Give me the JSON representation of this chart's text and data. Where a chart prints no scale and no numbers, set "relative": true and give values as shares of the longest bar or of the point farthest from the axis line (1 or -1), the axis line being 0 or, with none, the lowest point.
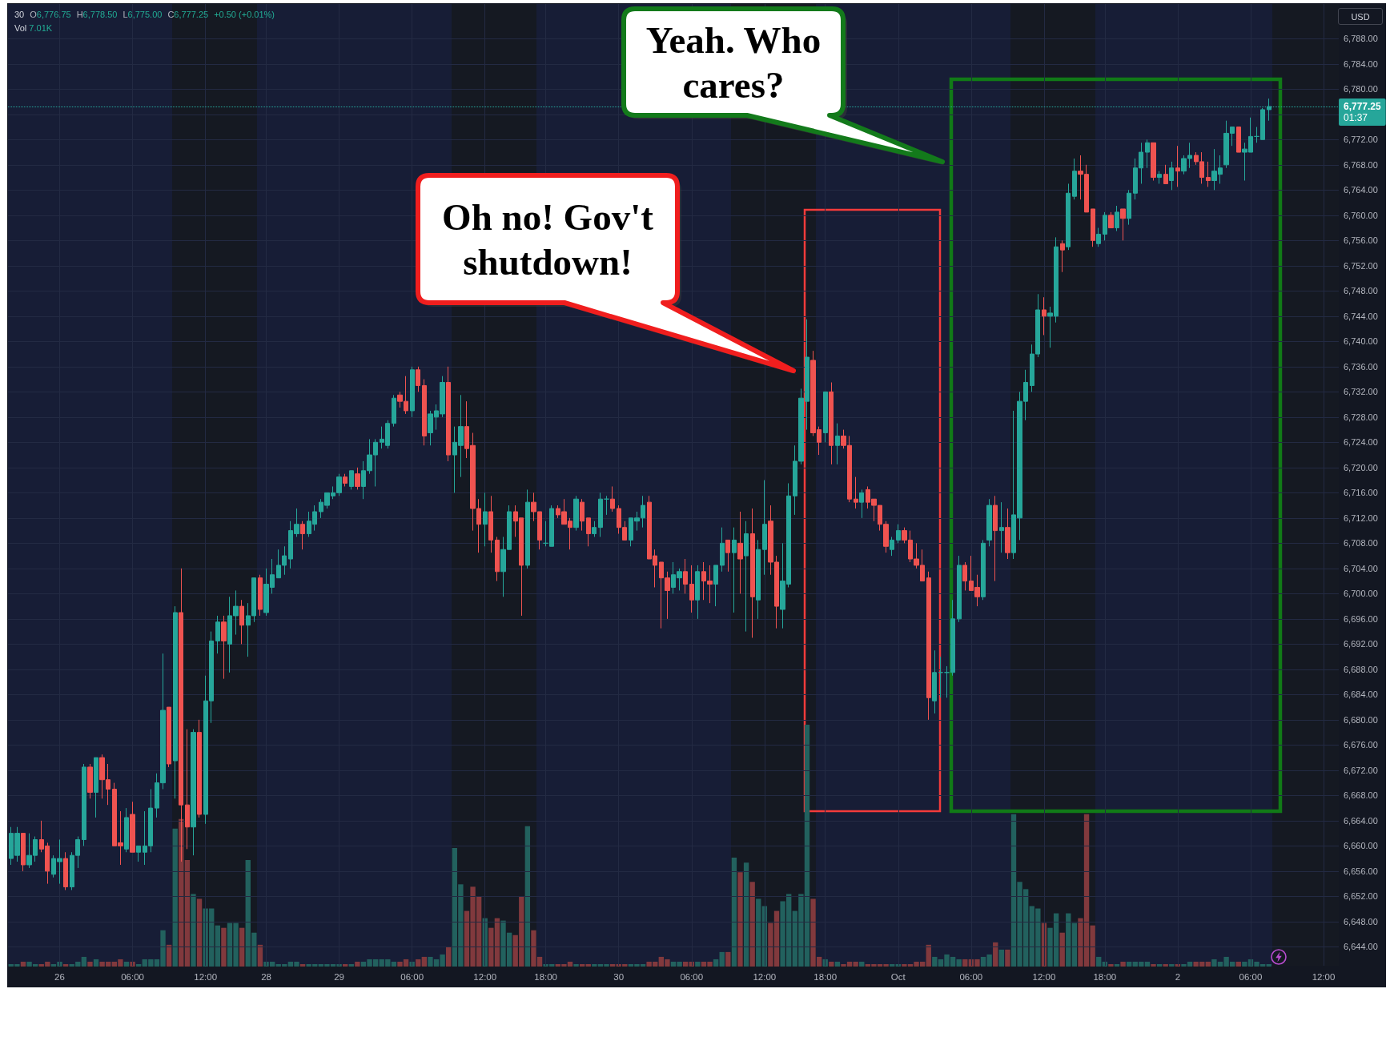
{
  "chart_data": [
    {
      "type": "candlestick",
      "categories": [
        null,
        null,
        null,
        null,
        null,
        null,
        null,
        null,
        "26",
        null,
        null,
        null,
        null,
        null,
        null,
        null,
        null,
        null,
        null,
        null,
        "06:00",
        null,
        null,
        null,
        null,
        null,
        null,
        null,
        null,
        null,
        null,
        null,
        "12:00",
        null,
        null,
        null,
        null,
        null,
        null,
        null,
        null,
        null,
        "28",
        null,
        null,
        null,
        null,
        null,
        null,
        null,
        null,
        null,
        null,
        null,
        "29",
        null,
        null,
        null,
        null,
        null,
        null,
        null,
        null,
        null,
        null,
        null,
        "06:00",
        null,
        null,
        null,
        null,
        null,
        null,
        null,
        null,
        null,
        null,
        null,
        "12:00",
        null,
        null,
        null,
        null,
        null,
        null,
        null,
        null,
        null,
        "18:00",
        null,
        null,
        null,
        null,
        null,
        null,
        null,
        null,
        null,
        null,
        null,
        "30",
        null,
        null,
        null,
        null,
        null,
        null,
        null,
        null,
        null,
        null,
        null,
        "06:00",
        null,
        null,
        null,
        null,
        null,
        null,
        null,
        null,
        null,
        null,
        null,
        "12:00",
        null,
        null,
        null,
        null,
        null,
        null,
        null,
        null,
        null,
        "18:00",
        null,
        null,
        null,
        null,
        null,
        null,
        null,
        null,
        null,
        null,
        null,
        "Oct",
        null,
        null,
        null,
        null,
        null,
        null,
        null,
        null,
        null,
        null,
        null,
        "06:00",
        null,
        null,
        null,
        null,
        null,
        null,
        null,
        null,
        null,
        null,
        null,
        "12:00",
        null,
        null,
        null,
        null,
        null,
        null,
        null,
        null,
        null,
        "18:00",
        null,
        null,
        null,
        null,
        null,
        null,
        null,
        null,
        null,
        null,
        null,
        "2",
        null,
        null,
        null,
        null,
        null,
        null,
        null,
        null,
        null,
        null,
        null,
        "06:00",
        null,
        null,
        null,
        null,
        null,
        null,
        null,
        null,
        null,
        null,
        null,
        "12:00",
        null,
        null
      ],
      "ohlc": [
        [
          6658,
          6663,
          6657,
          6662
        ],
        [
          6658.5,
          6663,
          6657.5,
          6662
        ],
        [
          6662,
          6662,
          6656,
          6657
        ],
        [
          6657,
          6662,
          6656.5,
          6658.5
        ],
        [
          6658.5,
          6661.5,
          6657.5,
          6661
        ],
        [
          6661,
          6664,
          6659,
          6659.5
        ],
        [
          6660,
          6660.5,
          6654,
          6656
        ],
        [
          6655.5,
          6658.5,
          6655,
          6658
        ],
        [
          6657.5,
          6661,
          6654,
          6658
        ],
        [
          6658,
          6659,
          6653,
          6653.5
        ],
        [
          6653.5,
          6659,
          6653,
          6658.5
        ],
        [
          6658.5,
          6661.5,
          6656.5,
          6661
        ],
        [
          6661,
          6673,
          6660,
          6672.5
        ],
        [
          6672.5,
          6673,
          6667.5,
          6668.5
        ],
        [
          6668.5,
          6674,
          6664.5,
          6674
        ],
        [
          6674,
          6674.5,
          6667.5,
          6670.5
        ],
        [
          6670.5,
          6673,
          6666.5,
          6669
        ],
        [
          6669,
          6670,
          6660,
          6660
        ],
        [
          6660.5,
          6665.5,
          6657,
          6660
        ],
        [
          6659.5,
          6666,
          6659,
          6664.5
        ],
        [
          6665,
          6667,
          6659,
          6659
        ],
        [
          6659,
          6660,
          6657.5,
          6660
        ],
        [
          6659,
          6665.5,
          6657,
          6660
        ],
        [
          6660,
          6669,
          6659,
          6666
        ],
        [
          6666,
          6671.5,
          6664.5,
          6670
        ],
        [
          6670,
          6690.5,
          6669,
          6681.5
        ],
        [
          6682,
          6682,
          6672.5,
          6673
        ],
        [
          6673.5,
          6698,
          6667.5,
          6697
        ],
        [
          6697,
          6704,
          6657.5,
          6666.5
        ],
        [
          6666.5,
          6678.5,
          6659.5,
          6663
        ],
        [
          6663,
          6678.5,
          6658.5,
          6678
        ],
        [
          6678,
          6680,
          6664.5,
          6665
        ],
        [
          6665,
          6687,
          6663.5,
          6683
        ],
        [
          6683,
          6694,
          6679.5,
          6692.5
        ],
        [
          6692.5,
          6696.5,
          6690.5,
          6695.5
        ],
        [
          6695.5,
          6696.5,
          6686.5,
          6692.5
        ],
        [
          6692,
          6699.5,
          6687.5,
          6696.5
        ],
        [
          6696.5,
          6700.5,
          6693.5,
          6698
        ],
        [
          6698,
          6699,
          6692,
          6695
        ],
        [
          6695,
          6698.5,
          6690,
          6696.5
        ],
        [
          6696.5,
          6702.5,
          6695.5,
          6702.5
        ],
        [
          6702.5,
          6703,
          6696.5,
          6697.5
        ],
        [
          6697,
          6704,
          6696.5,
          6701.5
        ],
        [
          6701,
          6705.5,
          6700,
          6703
        ],
        [
          6702.5,
          6707,
          6702.5,
          6704.5
        ],
        [
          6704.5,
          6707.5,
          6703,
          6706
        ],
        [
          6705.5,
          6711.5,
          6704,
          6710
        ],
        [
          6709.5,
          6713.5,
          6709,
          6711
        ],
        [
          6711,
          6711.5,
          6707,
          6709.5
        ],
        [
          6709.5,
          6713,
          6709,
          6711.5
        ],
        [
          6711,
          6714,
          6710,
          6713
        ],
        [
          6713,
          6715,
          6712,
          6714.5
        ],
        [
          6714,
          6716,
          6713.5,
          6716
        ],
        [
          6715.5,
          6717,
          6715,
          6716
        ],
        [
          6716,
          6719,
          6715.5,
          6718.5
        ],
        [
          6718.5,
          6719,
          6717,
          6717.5
        ],
        [
          6717,
          6719.5,
          6716.5,
          6719.5
        ],
        [
          6719,
          6720,
          6716.5,
          6717
        ],
        [
          6717,
          6721,
          6715,
          6719.5
        ],
        [
          6719.5,
          6724.5,
          6719,
          6722
        ],
        [
          6722,
          6724.5,
          6717,
          6724
        ],
        [
          6724,
          6726.5,
          6723,
          6724.5
        ],
        [
          6723.5,
          6727.5,
          6723,
          6727
        ],
        [
          6727,
          6731.5,
          6726.5,
          6731
        ],
        [
          6731.5,
          6732,
          6729.5,
          6730.5
        ],
        [
          6730.5,
          6734.5,
          6728.5,
          6729
        ],
        [
          6729,
          6736,
          6728,
          6735.5
        ],
        [
          6735.5,
          6736,
          6732,
          6733
        ],
        [
          6733,
          6734,
          6723.5,
          6725
        ],
        [
          6725.5,
          6729,
          6723.5,
          6728.5
        ],
        [
          6728,
          6730,
          6726,
          6729
        ],
        [
          6728.5,
          6734.5,
          6728,
          6733.5
        ],
        [
          6733.5,
          6736,
          6721,
          6722
        ],
        [
          6722,
          6726.5,
          6716,
          6724
        ],
        [
          6723.5,
          6731.5,
          6718.5,
          6726.5
        ],
        [
          6726.5,
          6730.5,
          6721.5,
          6723
        ],
        [
          6723.5,
          6725.5,
          6710,
          6713.5
        ],
        [
          6713.5,
          6715,
          6706.5,
          6711
        ],
        [
          6711,
          6716,
          6707.5,
          6713
        ],
        [
          6713,
          6715.5,
          6706.5,
          6708.5
        ],
        [
          6708.5,
          6709,
          6702,
          6703.5
        ],
        [
          6703.5,
          6709,
          6699.5,
          6707
        ],
        [
          6707,
          6714,
          6707,
          6713
        ],
        [
          6713,
          6714,
          6709,
          6711.5
        ],
        [
          6712,
          6712,
          6696.5,
          6704.5
        ],
        [
          6704.5,
          6716.5,
          6704,
          6714.5
        ],
        [
          6714.5,
          6716,
          6711.5,
          6713
        ],
        [
          6713,
          6713,
          6707,
          6708.5
        ],
        [
          6708,
          6711.5,
          6707.5,
          6708
        ],
        [
          6707.5,
          6714,
          6707.5,
          6713.5
        ],
        [
          6713.5,
          6714,
          6712,
          6712.5
        ],
        [
          6713,
          6715,
          6711,
          6711
        ],
        [
          6711.5,
          6712,
          6707,
          6710.5
        ],
        [
          6710.5,
          6715.5,
          6710,
          6715
        ],
        [
          6714.5,
          6715,
          6710,
          6711.5
        ],
        [
          6712,
          6712,
          6707.5,
          6709.5
        ],
        [
          6709.5,
          6711.5,
          6709,
          6710.5
        ],
        [
          6710.5,
          6716,
          6709,
          6715
        ],
        [
          6715,
          6715.5,
          6712.5,
          6715
        ],
        [
          6715,
          6717,
          6713,
          6713.5
        ],
        [
          6713.5,
          6714,
          6709.5,
          6710.5
        ],
        [
          6710.5,
          6711.5,
          6708.5,
          6708.5
        ],
        [
          6708.5,
          6712,
          6707.5,
          6712
        ],
        [
          6711.5,
          6713,
          6710,
          6712
        ],
        [
          6712,
          6715.5,
          6710.5,
          6714
        ],
        [
          6714.5,
          6715.5,
          6705.5,
          6705.5
        ],
        [
          6706,
          6707,
          6701,
          6704.5
        ],
        [
          6705,
          6705,
          6694.5,
          6702.5
        ],
        [
          6702.5,
          6703.5,
          6696,
          6700.5
        ],
        [
          6701,
          6705,
          6700,
          6703
        ],
        [
          6702.5,
          6704,
          6700.5,
          6703.5
        ],
        [
          6703.5,
          6705.5,
          6700,
          6701.5
        ],
        [
          6701.5,
          6704.5,
          6697,
          6699
        ],
        [
          6699,
          6704.5,
          6696,
          6703.5
        ],
        [
          6703.5,
          6705,
          6699,
          6702
        ],
        [
          6702,
          6704.5,
          6698.5,
          6701.5
        ],
        [
          6701.5,
          6704.5,
          6698,
          6704.5
        ],
        [
          6704.5,
          6710.5,
          6703.5,
          6708
        ],
        [
          6708.5,
          6708.5,
          6703.5,
          6706.5
        ],
        [
          6706.5,
          6710.5,
          6697,
          6708.5
        ],
        [
          6708,
          6713,
          6700,
          6705.5
        ],
        [
          6706,
          6711.5,
          6694,
          6709.5
        ],
        [
          6709.5,
          6713.5,
          6693,
          6699.5
        ],
        [
          6699,
          6708.5,
          6696,
          6707
        ],
        [
          6707,
          6718,
          6703,
          6711
        ],
        [
          6711.5,
          6714,
          6703,
          6705
        ],
        [
          6705,
          6706,
          6694.5,
          6698
        ],
        [
          6697.5,
          6708,
          6694.5,
          6702
        ],
        [
          6701.5,
          6717.5,
          6701,
          6715.5
        ],
        [
          6715.5,
          6723.5,
          6712.5,
          6721
        ],
        [
          6721,
          6732.5,
          6720.5,
          6731
        ],
        [
          6730.5,
          6743.5,
          6726,
          6737.5
        ],
        [
          6737,
          6738.5,
          6725,
          6725.5
        ],
        [
          6726,
          6726.5,
          6722,
          6724
        ],
        [
          6725.5,
          6732,
          6724,
          6732
        ],
        [
          6732,
          6733.5,
          6720.5,
          6723.5
        ],
        [
          6723.5,
          6727,
          6720.5,
          6725
        ],
        [
          6725,
          6726,
          6723,
          6723.5
        ],
        [
          6723.5,
          6725,
          6714.5,
          6715
        ],
        [
          6715,
          6718.5,
          6713.5,
          6714.5
        ],
        [
          6714.5,
          6716.5,
          6712,
          6716
        ],
        [
          6716.5,
          6717,
          6713.5,
          6714.5
        ],
        [
          6715,
          6715,
          6711.5,
          6714
        ],
        [
          6714,
          6714,
          6710,
          6711
        ],
        [
          6711,
          6711.5,
          6706.5,
          6707.5
        ],
        [
          6707,
          6709,
          6706,
          6708.5
        ],
        [
          6708.5,
          6711,
          6708,
          6710
        ],
        [
          6710,
          6710.5,
          6708,
          6708.5
        ],
        [
          6708.5,
          6710,
          6705,
          6705.5
        ],
        [
          6705.5,
          6708,
          6704,
          6704.5
        ],
        [
          6704.5,
          6707,
          6702,
          6702
        ],
        [
          6702.5,
          6703.5,
          6680,
          6683.5
        ],
        [
          6683,
          6691,
          6681,
          6687.5
        ],
        [
          6687.5,
          6690,
          6683.5,
          6687.5
        ],
        [
          6687.5,
          6688.5,
          6683.5,
          6687.5
        ],
        [
          6687.5,
          6699,
          6687,
          6696
        ],
        [
          6696,
          6706,
          6695.5,
          6704.5
        ],
        [
          6704.5,
          6705,
          6700.5,
          6702
        ],
        [
          6702,
          6706,
          6700.5,
          6700.5
        ],
        [
          6701,
          6703,
          6698,
          6699.5
        ],
        [
          6699.5,
          6708.5,
          6699,
          6708
        ],
        [
          6708.5,
          6715,
          6707.5,
          6714
        ],
        [
          6714,
          6715.5,
          6702,
          6710
        ],
        [
          6710,
          6714.5,
          6706.5,
          6710.5
        ],
        [
          6710.5,
          6713.5,
          6705.5,
          6706.5
        ],
        [
          6706.5,
          6729,
          6705.5,
          6712.5
        ],
        [
          6712,
          6732,
          6708.5,
          6730.5
        ],
        [
          6730.5,
          6735.5,
          6727.5,
          6733.5
        ],
        [
          6733,
          6739.5,
          6732,
          6738
        ],
        [
          6738,
          6747.5,
          6737.5,
          6745
        ],
        [
          6745,
          6747,
          6741,
          6744
        ],
        [
          6744,
          6745.5,
          6739,
          6744.5
        ],
        [
          6744,
          6756.5,
          6743,
          6755
        ],
        [
          6755.5,
          6756,
          6751,
          6754.5
        ],
        [
          6755,
          6765,
          6754.5,
          6763.5
        ],
        [
          6763,
          6769,
          6762.5,
          6767
        ],
        [
          6767,
          6769.5,
          6762.5,
          6766.5
        ],
        [
          6766.5,
          6768,
          6760.5,
          6760.5
        ],
        [
          6761,
          6761,
          6755,
          6756
        ],
        [
          6755.5,
          6758,
          6755,
          6757
        ],
        [
          6757,
          6760.5,
          6756,
          6760
        ],
        [
          6760,
          6760.5,
          6758,
          6758
        ],
        [
          6758,
          6761.5,
          6757.5,
          6760.5
        ],
        [
          6761,
          6761,
          6756,
          6759.5
        ],
        [
          6759.5,
          6764,
          6758.5,
          6763.5
        ],
        [
          6763.5,
          6769,
          6762.5,
          6767.5
        ],
        [
          6767.5,
          6771.5,
          6765,
          6770
        ],
        [
          6770,
          6772,
          6767.5,
          6771.5
        ],
        [
          6771.5,
          6771.5,
          6765.5,
          6766
        ],
        [
          6766,
          6767,
          6765,
          6766.5
        ],
        [
          6766.5,
          6768,
          6765,
          6765
        ],
        [
          6765.5,
          6768.5,
          6764,
          6767.5
        ],
        [
          6767.5,
          6771,
          6764.5,
          6767
        ],
        [
          6767,
          6769.5,
          6766.5,
          6769
        ],
        [
          6769,
          6771.5,
          6767.5,
          6769.5
        ],
        [
          6769.5,
          6770,
          6768,
          6768.5
        ],
        [
          6768.5,
          6770,
          6765,
          6766
        ],
        [
          6766,
          6768.5,
          6764.5,
          6765.5
        ],
        [
          6765.5,
          6770.5,
          6764,
          6767
        ],
        [
          6766.5,
          6769.5,
          6765,
          6767.5
        ],
        [
          6768,
          6775,
          6767.5,
          6773
        ],
        [
          6773,
          6774,
          6771,
          6774
        ],
        [
          6774,
          6774,
          6770,
          6770
        ],
        [
          6770,
          6771.5,
          6765.5,
          6770.5
        ],
        [
          6770,
          6775.5,
          6770,
          6772.5
        ],
        [
          6772.5,
          6774,
          6771.5,
          6772.5
        ],
        [
          6772,
          6777,
          6772,
          6776.75
        ],
        [
          6776.75,
          6778.5,
          6775,
          6777.25
        ],
        null,
        null,
        null,
        null,
        null,
        null,
        null,
        null,
        null,
        null,
        null
      ],
      "colors": [
        "#26a69a",
        "#26a69a",
        "#ef5350",
        "#26a69a",
        "#26a69a",
        "#ef5350",
        "#ef5350",
        "#26a69a",
        "#26a69a",
        "#ef5350",
        "#26a69a",
        "#26a69a",
        "#26a69a",
        "#ef5350",
        "#26a69a",
        "#ef5350",
        "#ef5350",
        "#ef5350",
        "#ef5350",
        "#26a69a",
        "#ef5350",
        "#26a69a",
        "#26a69a",
        "#26a69a",
        "#26a69a",
        "#26a69a",
        "#ef5350",
        "#26a69a",
        "#ef5350",
        "#ef5350",
        "#26a69a",
        "#ef5350",
        "#26a69a",
        "#26a69a",
        "#26a69a",
        "#ef5350",
        "#26a69a",
        "#26a69a",
        "#ef5350",
        "#26a69a",
        "#26a69a",
        "#ef5350",
        "#26a69a",
        "#26a69a",
        "#26a69a",
        "#26a69a",
        "#26a69a",
        "#26a69a",
        "#ef5350",
        "#26a69a",
        "#26a69a",
        "#26a69a",
        "#26a69a",
        "#26a69a",
        "#26a69a",
        "#ef5350",
        "#26a69a",
        "#ef5350",
        "#26a69a",
        "#26a69a",
        "#26a69a",
        "#26a69a",
        "#26a69a",
        "#26a69a",
        "#ef5350",
        "#ef5350",
        "#26a69a",
        "#ef5350",
        "#ef5350",
        "#26a69a",
        "#26a69a",
        "#26a69a",
        "#ef5350",
        "#26a69a",
        "#26a69a",
        "#ef5350",
        "#ef5350",
        "#ef5350",
        "#26a69a",
        "#ef5350",
        "#ef5350",
        "#26a69a",
        "#26a69a",
        "#ef5350",
        "#ef5350",
        "#26a69a",
        "#ef5350",
        "#ef5350",
        "#26a69a",
        "#26a69a",
        "#ef5350",
        "#ef5350",
        "#ef5350",
        "#26a69a",
        "#ef5350",
        "#ef5350",
        "#26a69a",
        "#26a69a",
        "#26a69a",
        "#ef5350",
        "#ef5350",
        "#ef5350",
        "#26a69a",
        "#26a69a",
        "#26a69a",
        "#ef5350",
        "#ef5350",
        "#ef5350",
        "#ef5350",
        "#26a69a",
        "#26a69a",
        "#ef5350",
        "#ef5350",
        "#26a69a",
        "#ef5350",
        "#ef5350",
        "#26a69a",
        "#26a69a",
        "#ef5350",
        "#26a69a",
        "#ef5350",
        "#26a69a",
        "#ef5350",
        "#26a69a",
        "#26a69a",
        "#ef5350",
        "#ef5350",
        "#26a69a",
        "#26a69a",
        "#26a69a",
        "#26a69a",
        "#26a69a",
        "#ef5350",
        "#ef5350",
        "#26a69a",
        "#ef5350",
        "#26a69a",
        "#ef5350",
        "#ef5350",
        "#ef5350",
        "#26a69a",
        "#ef5350",
        "#ef5350",
        "#ef5350",
        "#ef5350",
        "#26a69a",
        "#26a69a",
        "#ef5350",
        "#ef5350",
        "#ef5350",
        "#ef5350",
        "#ef5350",
        "#26a69a",
        "#26a69a",
        "#26a69a",
        "#26a69a",
        "#26a69a",
        "#ef5350",
        "#ef5350",
        "#ef5350",
        "#26a69a",
        "#26a69a",
        "#ef5350",
        "#26a69a",
        "#ef5350",
        "#26a69a",
        "#26a69a",
        "#26a69a",
        "#26a69a",
        "#26a69a",
        "#ef5350",
        "#26a69a",
        "#26a69a",
        "#ef5350",
        "#26a69a",
        "#26a69a",
        "#ef5350",
        "#ef5350",
        "#ef5350",
        "#26a69a",
        "#26a69a",
        "#ef5350",
        "#26a69a",
        "#ef5350",
        "#26a69a",
        "#26a69a",
        "#26a69a",
        "#26a69a",
        "#ef5350",
        "#26a69a",
        "#ef5350",
        "#26a69a",
        "#ef5350",
        "#26a69a",
        "#26a69a",
        "#ef5350",
        "#ef5350",
        "#ef5350",
        "#26a69a",
        "#26a69a",
        "#26a69a",
        "#26a69a",
        "#ef5350",
        "#26a69a",
        "#26a69a",
        "#26a69a",
        "#26a69a",
        "#26a69a",
        null,
        null,
        null,
        null,
        null,
        null,
        null,
        null,
        null,
        null,
        null
      ],
      "ylim": [
        6641,
        6793.5
      ],
      "yticks": [
        {
          "value": 6644,
          "label": "6,644.00"
        },
        {
          "value": 6648,
          "label": "6,648.00"
        },
        {
          "value": 6652,
          "label": "6,652.00"
        },
        {
          "value": 6656,
          "label": "6,656.00"
        },
        {
          "value": 6660,
          "label": "6,660.00"
        },
        {
          "value": 6664,
          "label": "6,664.00"
        },
        {
          "value": 6668,
          "label": "6,668.00"
        },
        {
          "value": 6672,
          "label": "6,672.00"
        },
        {
          "value": 6676,
          "label": "6,676.00"
        },
        {
          "value": 6680,
          "label": "6,680.00"
        },
        {
          "value": 6684,
          "label": "6,684.00"
        },
        {
          "value": 6688,
          "label": "6,688.00"
        },
        {
          "value": 6692,
          "label": "6,692.00"
        },
        {
          "value": 6696,
          "label": "6,696.00"
        },
        {
          "value": 6700,
          "label": "6,700.00"
        },
        {
          "value": 6704,
          "label": "6,704.00"
        },
        {
          "value": 6708,
          "label": "6,708.00"
        },
        {
          "value": 6712,
          "label": "6,712.00"
        },
        {
          "value": 6716,
          "label": "6,716.00"
        },
        {
          "value": 6720,
          "label": "6,720.00"
        },
        {
          "value": 6724,
          "label": "6,724.00"
        },
        {
          "value": 6728,
          "label": "6,728.00"
        },
        {
          "value": 6732,
          "label": "6,732.00"
        },
        {
          "value": 6736,
          "label": "6,736.00"
        },
        {
          "value": 6740,
          "label": "6,740.00"
        },
        {
          "value": 6744,
          "label": "6,744.00"
        },
        {
          "value": 6748,
          "label": "6,748.00"
        },
        {
          "value": 6752,
          "label": "6,752.00"
        },
        {
          "value": 6756,
          "label": "6,756.00"
        },
        {
          "value": 6760,
          "label": "6,760.00"
        },
        {
          "value": 6764,
          "label": "6,764.00"
        },
        {
          "value": 6768,
          "label": "6,768.00"
        },
        {
          "value": 6772,
          "label": "6,772.00"
        },
        {
          "value": 6776,
          "label": null
        },
        {
          "value": 6780,
          "label": "6,780.00"
        },
        {
          "value": 6784,
          "label": "6,784.00"
        },
        {
          "value": 6788,
          "label": "6,788.00"
        }
      ],
      "grid": true,
      "ref_lines": [
        {
          "axis": "y",
          "value": 6777.25,
          "label": "6,777.25",
          "color": "#26a69a",
          "line_style": "dotted"
        }
      ],
      "annotations": [
        "30",
        "O6,776.75",
        "H6,778.50",
        "L6,775.00",
        "C6,777.25",
        "+0.50 (+0.01%)",
        "Vol 7.01K",
        "USD",
        "01:37",
        "Oh no! Gov't shutdown!",
        "Yeah. Who cares?"
      ]
    },
    {
      "type": "bar",
      "relative": true,
      "categories": [
        null,
        null,
        null,
        null,
        null,
        null,
        null,
        null,
        null,
        null,
        null,
        null,
        null,
        null,
        null,
        null,
        null,
        null,
        null,
        null,
        null,
        null,
        null,
        null,
        null,
        null,
        null,
        null,
        null,
        null,
        null,
        null,
        null,
        null,
        null,
        null,
        null,
        null,
        null,
        null,
        null,
        null,
        null,
        null,
        null,
        null,
        null,
        null,
        null,
        null,
        null,
        null,
        null,
        null,
        null,
        null,
        null,
        null,
        null,
        null,
        null,
        null,
        null,
        null,
        null,
        null,
        null,
        null,
        null,
        null,
        null,
        null,
        null,
        null,
        null,
        null,
        null,
        null,
        null,
        null,
        null,
        null,
        null,
        null,
        null,
        null,
        null,
        null,
        null,
        null,
        null,
        null,
        null,
        null,
        null,
        null,
        null,
        null,
        null,
        null,
        null,
        null,
        null,
        null,
        null,
        null,
        null,
        null,
        null,
        null,
        null,
        null,
        null,
        null,
        null,
        null,
        null,
        null,
        null,
        null,
        null,
        null,
        null,
        null,
        null,
        null,
        null,
        null,
        null,
        null,
        null,
        null,
        null,
        null,
        null,
        null,
        null,
        null,
        null,
        null,
        null,
        null,
        null,
        null,
        null,
        null,
        null,
        null,
        null,
        null,
        null,
        null,
        null,
        null,
        null,
        null,
        null,
        null,
        null,
        null,
        null,
        null,
        null,
        null,
        null,
        null,
        null,
        null,
        null,
        null,
        null,
        null,
        null,
        null,
        null,
        null,
        null,
        null,
        null,
        null,
        null,
        null,
        null,
        null,
        null,
        null,
        null,
        null,
        null,
        null,
        null,
        null,
        null,
        null,
        null,
        null,
        null,
        null,
        null,
        null,
        null,
        null,
        null,
        null,
        null,
        null,
        null,
        null,
        null,
        null,
        null,
        null,
        null,
        null,
        null,
        null,
        null,
        null,
        null
      ],
      "values": [
        0.01,
        0.01,
        0.02,
        0.02,
        0.01,
        0.01,
        0.02,
        0.01,
        0.02,
        0.01,
        0.01,
        0.02,
        0.04,
        0.02,
        0.03,
        0.02,
        0.02,
        0.02,
        0.03,
        0.02,
        0.02,
        0.01,
        0.03,
        0.03,
        0.03,
        0.15,
        0.09,
        0.57,
        0.61,
        0.44,
        0.3,
        0.28,
        0.24,
        0.24,
        0.17,
        0.16,
        0.18,
        0.18,
        0.16,
        0.44,
        0.14,
        0.09,
        0.02,
        0.02,
        0.01,
        0.01,
        0.02,
        0.02,
        0.01,
        0.01,
        0.01,
        0.01,
        0.01,
        0.01,
        0.01,
        0.01,
        0.01,
        0.02,
        0.02,
        0.03,
        0.03,
        0.03,
        0.03,
        0.02,
        0.02,
        0.03,
        0.02,
        0.03,
        0.04,
        0.04,
        0.03,
        0.05,
        0.08,
        0.49,
        0.34,
        0.23,
        0.33,
        0.29,
        0.2,
        0.16,
        0.2,
        0.19,
        0.14,
        0.13,
        0.29,
        0.58,
        0.15,
        0.04,
        0.01,
        0.01,
        0.01,
        0.01,
        0.02,
        0.01,
        0.01,
        0.01,
        0.01,
        0.01,
        0.01,
        0.01,
        0.01,
        0.01,
        0.01,
        0.01,
        0.01,
        0.02,
        0.02,
        0.04,
        0.03,
        0.02,
        0.02,
        0.02,
        0.02,
        0.02,
        0.02,
        0.02,
        0.03,
        0.06,
        0.06,
        0.45,
        0.39,
        0.43,
        0.35,
        0.28,
        0.25,
        0.18,
        0.23,
        0.27,
        0.3,
        0.23,
        0.3,
        1,
        0.28,
        0.04,
        0.03,
        0.02,
        0.02,
        0.01,
        0.02,
        0.02,
        0.02,
        0.01,
        0.01,
        0.01,
        0.01,
        0.01,
        0.01,
        0.01,
        0.01,
        0.02,
        0.02,
        0.09,
        0.04,
        0.03,
        0.05,
        0.04,
        0.03,
        0.03,
        0.03,
        0.03,
        0.04,
        0.05,
        0.1,
        0.07,
        0.07,
        0.63,
        0.35,
        0.32,
        0.25,
        0.24,
        0.18,
        0.16,
        0.22,
        0.14,
        0.22,
        0.18,
        0.2,
        0.63,
        0.17,
        0.04,
        0.02,
        0.01,
        0.01,
        0.02,
        0.02,
        0.02,
        0.02,
        0.02,
        0.01,
        0.01,
        0.01,
        0.01,
        0.01,
        0.01,
        0.02,
        0.02,
        0.02,
        0.02,
        0.03,
        0.02,
        0.04,
        0.02,
        0.02,
        0.02,
        0.03,
        0.02,
        0.01,
        0.01,
        null,
        null,
        null,
        null,
        null,
        null,
        null,
        null,
        null,
        null,
        null
      ],
      "colors": [
        "#22615e",
        "#22615e",
        "#81393d",
        "#22615e",
        "#22615e",
        "#81393d",
        "#81393d",
        "#22615e",
        "#22615e",
        "#81393d",
        "#22615e",
        "#22615e",
        "#22615e",
        "#81393d",
        "#22615e",
        "#81393d",
        "#81393d",
        "#81393d",
        "#81393d",
        "#22615e",
        "#81393d",
        "#22615e",
        "#22615e",
        "#22615e",
        "#22615e",
        "#22615e",
        "#81393d",
        "#22615e",
        "#81393d",
        "#81393d",
        "#22615e",
        "#81393d",
        "#22615e",
        "#22615e",
        "#22615e",
        "#81393d",
        "#22615e",
        "#22615e",
        "#81393d",
        "#22615e",
        "#22615e",
        "#81393d",
        "#22615e",
        "#22615e",
        "#22615e",
        "#22615e",
        "#22615e",
        "#22615e",
        "#81393d",
        "#22615e",
        "#22615e",
        "#22615e",
        "#22615e",
        "#22615e",
        "#22615e",
        "#81393d",
        "#22615e",
        "#81393d",
        "#22615e",
        "#22615e",
        "#22615e",
        "#22615e",
        "#22615e",
        "#22615e",
        "#81393d",
        "#81393d",
        "#22615e",
        "#81393d",
        "#81393d",
        "#22615e",
        "#22615e",
        "#22615e",
        "#81393d",
        "#22615e",
        "#22615e",
        "#81393d",
        "#81393d",
        "#81393d",
        "#22615e",
        "#81393d",
        "#81393d",
        "#22615e",
        "#22615e",
        "#81393d",
        "#81393d",
        "#22615e",
        "#81393d",
        "#81393d",
        "#22615e",
        "#22615e",
        "#81393d",
        "#81393d",
        "#81393d",
        "#22615e",
        "#81393d",
        "#81393d",
        "#22615e",
        "#22615e",
        "#22615e",
        "#81393d",
        "#81393d",
        "#81393d",
        "#22615e",
        "#22615e",
        "#22615e",
        "#81393d",
        "#81393d",
        "#81393d",
        "#81393d",
        "#22615e",
        "#22615e",
        "#81393d",
        "#81393d",
        "#22615e",
        "#81393d",
        "#81393d",
        "#22615e",
        "#22615e",
        "#81393d",
        "#22615e",
        "#81393d",
        "#22615e",
        "#81393d",
        "#22615e",
        "#22615e",
        "#81393d",
        "#81393d",
        "#22615e",
        "#22615e",
        "#22615e",
        "#22615e",
        "#22615e",
        "#81393d",
        "#81393d",
        "#22615e",
        "#81393d",
        "#22615e",
        "#81393d",
        "#81393d",
        "#81393d",
        "#22615e",
        "#81393d",
        "#81393d",
        "#81393d",
        "#81393d",
        "#22615e",
        "#22615e",
        "#81393d",
        "#81393d",
        "#81393d",
        "#81393d",
        "#81393d",
        "#22615e",
        "#22615e",
        "#22615e",
        "#22615e",
        "#22615e",
        "#81393d",
        "#81393d",
        "#81393d",
        "#22615e",
        "#22615e",
        "#81393d",
        "#22615e",
        "#81393d",
        "#22615e",
        "#22615e",
        "#22615e",
        "#22615e",
        "#22615e",
        "#81393d",
        "#22615e",
        "#22615e",
        "#81393d",
        "#22615e",
        "#22615e",
        "#81393d",
        "#81393d",
        "#81393d",
        "#22615e",
        "#22615e",
        "#81393d",
        "#22615e",
        "#81393d",
        "#22615e",
        "#22615e",
        "#22615e",
        "#22615e",
        "#81393d",
        "#22615e",
        "#81393d",
        "#22615e",
        "#81393d",
        "#22615e",
        "#22615e",
        "#81393d",
        "#81393d",
        "#81393d",
        "#22615e",
        "#22615e",
        "#22615e",
        "#22615e",
        "#81393d",
        "#22615e",
        "#22615e",
        "#22615e",
        "#22615e",
        "#22615e",
        null,
        null,
        null,
        null,
        null,
        null,
        null,
        null,
        null,
        null,
        null
      ]
    }
  ]
}
